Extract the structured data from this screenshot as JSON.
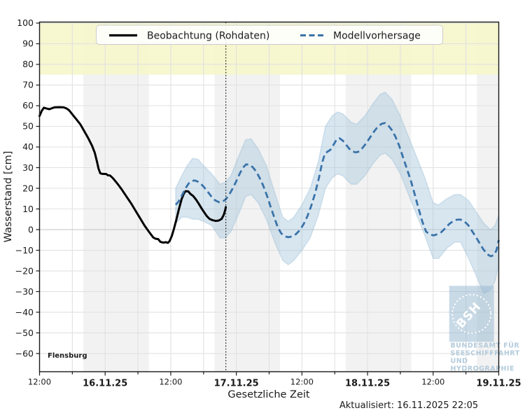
{
  "station": "Flensburg",
  "updated_label": "Aktualisiert: 16.11.2025 22:05",
  "legend": {
    "observation": "Beobachtung (Rohdaten)",
    "forecast": "Modellvorhersage"
  },
  "axes": {
    "ylabel": "Wasserstand [cm]",
    "xlabel": "Gesetzliche Zeit"
  },
  "watermark": {
    "acronym": "BSH",
    "lines": [
      "BUNDESAMT FÜR",
      "SEESCHIFFFAHRT",
      "UND",
      "HYDROGRAPHIE"
    ]
  },
  "colors": {
    "observation": "#000000",
    "forecast": "#3a73a9",
    "band_fill": "#a9c7de",
    "band_edge": "#8fb6d4",
    "warning_band": "#f6f6ca",
    "night_band": "#f2f2f2",
    "grid": "#e1e1e1",
    "grid_zero": "#c9c9c9",
    "spine": "#1a1a1a",
    "watermark_blue": "#9db9d0"
  },
  "chart_data": {
    "type": "line",
    "title": "",
    "xlabel": "Gesetzliche Zeit",
    "ylabel": "Wasserstand [cm]",
    "x_unit": "hours since 15.11.2025 12:00",
    "xlim": [
      0,
      84
    ],
    "ylim": [
      -68.8,
      100.5
    ],
    "grid": true,
    "legend_position": "top-center",
    "x_major_ticks": [
      {
        "t": 0,
        "label": "12:00",
        "kind": "time"
      },
      {
        "t": 12,
        "label": "16.11.25",
        "kind": "date"
      },
      {
        "t": 24,
        "label": "12:00",
        "kind": "time"
      },
      {
        "t": 36,
        "label": "17.11.25",
        "kind": "date"
      },
      {
        "t": 48,
        "label": "12:00",
        "kind": "time"
      },
      {
        "t": 60,
        "label": "18.11.25",
        "kind": "date"
      },
      {
        "t": 72,
        "label": "12:00",
        "kind": "time"
      },
      {
        "t": 84,
        "label": "19.11.25",
        "kind": "date"
      }
    ],
    "x_minor_step": 6,
    "y_ticks": [
      {
        "v": 100,
        "label": "100"
      },
      {
        "v": 90,
        "label": "90"
      },
      {
        "v": 80,
        "label": "80"
      },
      {
        "v": 70,
        "label": "70"
      },
      {
        "v": 60,
        "label": "60"
      },
      {
        "v": 50,
        "label": "50"
      },
      {
        "v": 40,
        "label": "40"
      },
      {
        "v": 30,
        "label": "30"
      },
      {
        "v": 20,
        "label": "20"
      },
      {
        "v": 10,
        "label": "10"
      },
      {
        "v": 0,
        "label": "0"
      },
      {
        "v": -10,
        "label": "−10"
      },
      {
        "v": -20,
        "label": "−20"
      },
      {
        "v": -30,
        "label": "−30"
      },
      {
        "v": -40,
        "label": "−40"
      },
      {
        "v": -50,
        "label": "−50"
      },
      {
        "v": -60,
        "label": "−60"
      }
    ],
    "warning_band": {
      "from": 75,
      "to": 100.5
    },
    "night_bands": [
      [
        8,
        20
      ],
      [
        32,
        44
      ],
      [
        56,
        68
      ],
      [
        80,
        84
      ]
    ],
    "current_time": {
      "t": 34.08
    },
    "series": [
      {
        "name": "Beobachtung (Rohdaten)",
        "style": "solid",
        "points": [
          [
            0,
            55
          ],
          [
            0.4,
            57.5
          ],
          [
            0.8,
            59
          ],
          [
            1.3,
            58.6
          ],
          [
            1.8,
            58.3
          ],
          [
            2.3,
            58.8
          ],
          [
            2.7,
            59.2
          ],
          [
            3.6,
            59.3
          ],
          [
            4.4,
            59.2
          ],
          [
            4.9,
            58.7
          ],
          [
            5.4,
            57.8
          ],
          [
            6.1,
            55.5
          ],
          [
            6.8,
            53.2
          ],
          [
            7.5,
            50.8
          ],
          [
            8.2,
            47.6
          ],
          [
            8.9,
            44.3
          ],
          [
            9.6,
            40.6
          ],
          [
            10.1,
            37.2
          ],
          [
            10.5,
            33
          ],
          [
            10.8,
            29.5
          ],
          [
            11.1,
            27.3
          ],
          [
            11.5,
            27
          ],
          [
            12.2,
            26.9
          ],
          [
            12.5,
            26.3
          ],
          [
            12.9,
            26.2
          ],
          [
            13.4,
            25
          ],
          [
            14.2,
            22.4
          ],
          [
            15,
            19.6
          ],
          [
            15.9,
            16
          ],
          [
            16.8,
            12.5
          ],
          [
            17.6,
            9
          ],
          [
            18.4,
            5.5
          ],
          [
            19.2,
            2
          ],
          [
            20,
            -1
          ],
          [
            20.8,
            -3.8
          ],
          [
            21.2,
            -4.4
          ],
          [
            21.7,
            -4.6
          ],
          [
            22.1,
            -5.9
          ],
          [
            22.6,
            -6.3
          ],
          [
            23.1,
            -6.1
          ],
          [
            23.5,
            -6.4
          ],
          [
            23.8,
            -5.5
          ],
          [
            24.2,
            -3
          ],
          [
            24.6,
            0.5
          ],
          [
            25,
            4.5
          ],
          [
            25.5,
            9.9
          ],
          [
            26,
            14.8
          ],
          [
            26.4,
            17.5
          ],
          [
            26.7,
            18.6
          ],
          [
            27.2,
            18.5
          ],
          [
            27.6,
            17.3
          ],
          [
            28.1,
            16.3
          ],
          [
            28.6,
            14.6
          ],
          [
            29.1,
            12.6
          ],
          [
            29.6,
            10.4
          ],
          [
            30.1,
            8.4
          ],
          [
            30.6,
            6.5
          ],
          [
            31.1,
            5.2
          ],
          [
            31.6,
            4.6
          ],
          [
            32.2,
            4.2
          ],
          [
            32.8,
            4.4
          ],
          [
            33.3,
            5.2
          ],
          [
            33.7,
            7.2
          ],
          [
            34,
            9.8
          ],
          [
            34.08,
            10.9
          ]
        ]
      },
      {
        "name": "Modellvorhersage",
        "style": "dashed",
        "points": [
          [
            24.9,
            12
          ],
          [
            25.4,
            13.5
          ],
          [
            26,
            16.3
          ],
          [
            26.7,
            20
          ],
          [
            27.3,
            22.4
          ],
          [
            27.8,
            23.5
          ],
          [
            28.4,
            23.8
          ],
          [
            28.9,
            23.3
          ],
          [
            29.5,
            22.2
          ],
          [
            30.1,
            20.5
          ],
          [
            30.8,
            18.2
          ],
          [
            31.5,
            15.8
          ],
          [
            32.1,
            14.2
          ],
          [
            32.8,
            13.3
          ],
          [
            33.4,
            13.4
          ],
          [
            34,
            14.5
          ],
          [
            34.6,
            16.5
          ],
          [
            35.2,
            19.3
          ],
          [
            35.9,
            23
          ],
          [
            36.6,
            27
          ],
          [
            37.2,
            30
          ],
          [
            37.8,
            31.6
          ],
          [
            38.4,
            31.4
          ],
          [
            39,
            30.2
          ],
          [
            39.6,
            28.2
          ],
          [
            40.2,
            25.4
          ],
          [
            40.9,
            21.4
          ],
          [
            41.6,
            16.4
          ],
          [
            42.3,
            10.9
          ],
          [
            43,
            5.4
          ],
          [
            43.6,
            1
          ],
          [
            44.2,
            -1.8
          ],
          [
            44.8,
            -3.2
          ],
          [
            45.5,
            -3.7
          ],
          [
            46.2,
            -3.3
          ],
          [
            46.9,
            -2.2
          ],
          [
            47.6,
            -0.3
          ],
          [
            48.3,
            2.6
          ],
          [
            49,
            6.5
          ],
          [
            49.7,
            11.5
          ],
          [
            50.4,
            17.5
          ],
          [
            51.1,
            25
          ],
          [
            51.7,
            32.5
          ],
          [
            52.2,
            36.8
          ],
          [
            52.7,
            37.8
          ],
          [
            53.2,
            38.6
          ],
          [
            53.8,
            41.2
          ],
          [
            54.4,
            43.9
          ],
          [
            54.9,
            44.2
          ],
          [
            55.5,
            43
          ],
          [
            56.1,
            41
          ],
          [
            56.7,
            39
          ],
          [
            57.3,
            37.8
          ],
          [
            57.9,
            37.4
          ],
          [
            58.5,
            37.9
          ],
          [
            59.1,
            39.6
          ],
          [
            59.8,
            42
          ],
          [
            60.5,
            44.8
          ],
          [
            61.2,
            47.5
          ],
          [
            61.9,
            49.9
          ],
          [
            62.6,
            51.3
          ],
          [
            63.2,
            51.6
          ],
          [
            63.8,
            50.4
          ],
          [
            64.4,
            48.4
          ],
          [
            65.1,
            45
          ],
          [
            65.8,
            40.5
          ],
          [
            66.5,
            35
          ],
          [
            67.2,
            29.4
          ],
          [
            67.9,
            23.9
          ],
          [
            68.6,
            17.4
          ],
          [
            69.3,
            10.5
          ],
          [
            70,
            4
          ],
          [
            70.7,
            -0.9
          ],
          [
            71.4,
            -2.4
          ],
          [
            72.1,
            -2.8
          ],
          [
            72.8,
            -2.2
          ],
          [
            73.5,
            -1.2
          ],
          [
            74.2,
            0.6
          ],
          [
            74.9,
            2.6
          ],
          [
            75.6,
            4
          ],
          [
            76.3,
            4.8
          ],
          [
            77,
            4.9
          ],
          [
            77.7,
            4
          ],
          [
            78.4,
            2.2
          ],
          [
            79.1,
            -0.6
          ],
          [
            79.8,
            -3.5
          ],
          [
            80.5,
            -6.6
          ],
          [
            81.2,
            -9.6
          ],
          [
            81.9,
            -11.9
          ],
          [
            82.5,
            -12.9
          ],
          [
            83.1,
            -12.4
          ],
          [
            83.6,
            -9.9
          ],
          [
            84,
            -5
          ]
        ],
        "band": [
          [
            24.9,
            3,
            20
          ],
          [
            26,
            6,
            26
          ],
          [
            27,
            6,
            31
          ],
          [
            28,
            5,
            34.5
          ],
          [
            29,
            5,
            34
          ],
          [
            30,
            4,
            31
          ],
          [
            31.5,
            2,
            27
          ],
          [
            33,
            -4,
            22
          ],
          [
            34,
            -4,
            23
          ],
          [
            35,
            -1,
            26
          ],
          [
            36.5,
            8,
            36
          ],
          [
            37.7,
            16,
            43.5
          ],
          [
            38.7,
            17,
            44
          ],
          [
            40,
            13,
            39
          ],
          [
            41.5,
            5,
            31
          ],
          [
            43,
            -6,
            18
          ],
          [
            44.5,
            -15,
            6
          ],
          [
            45.5,
            -17,
            4
          ],
          [
            46.5,
            -15,
            6
          ],
          [
            48,
            -10,
            12
          ],
          [
            49.5,
            -4,
            20
          ],
          [
            51,
            7,
            33
          ],
          [
            52.3,
            20,
            50
          ],
          [
            53.5,
            25,
            55
          ],
          [
            54.5,
            27,
            57
          ],
          [
            55.5,
            26,
            56
          ],
          [
            57,
            22,
            52
          ],
          [
            58,
            22,
            51
          ],
          [
            59.5,
            26,
            55
          ],
          [
            61,
            32,
            61
          ],
          [
            62.3,
            36,
            65.5
          ],
          [
            63.2,
            37,
            66.5
          ],
          [
            64.5,
            34,
            63
          ],
          [
            66,
            27,
            55
          ],
          [
            67.5,
            17,
            45
          ],
          [
            69,
            7,
            35
          ],
          [
            70.5,
            -3,
            25
          ],
          [
            72,
            -14,
            13
          ],
          [
            73,
            -14,
            12
          ],
          [
            74.5,
            -9,
            15
          ],
          [
            76,
            -6,
            17
          ],
          [
            77,
            -6,
            17
          ],
          [
            78.5,
            -14,
            14
          ],
          [
            80,
            -23,
            8
          ],
          [
            81.3,
            -31,
            3
          ],
          [
            82.5,
            -29,
            0
          ],
          [
            83.3,
            -25,
            2
          ],
          [
            84,
            -17,
            7
          ]
        ]
      }
    ]
  }
}
